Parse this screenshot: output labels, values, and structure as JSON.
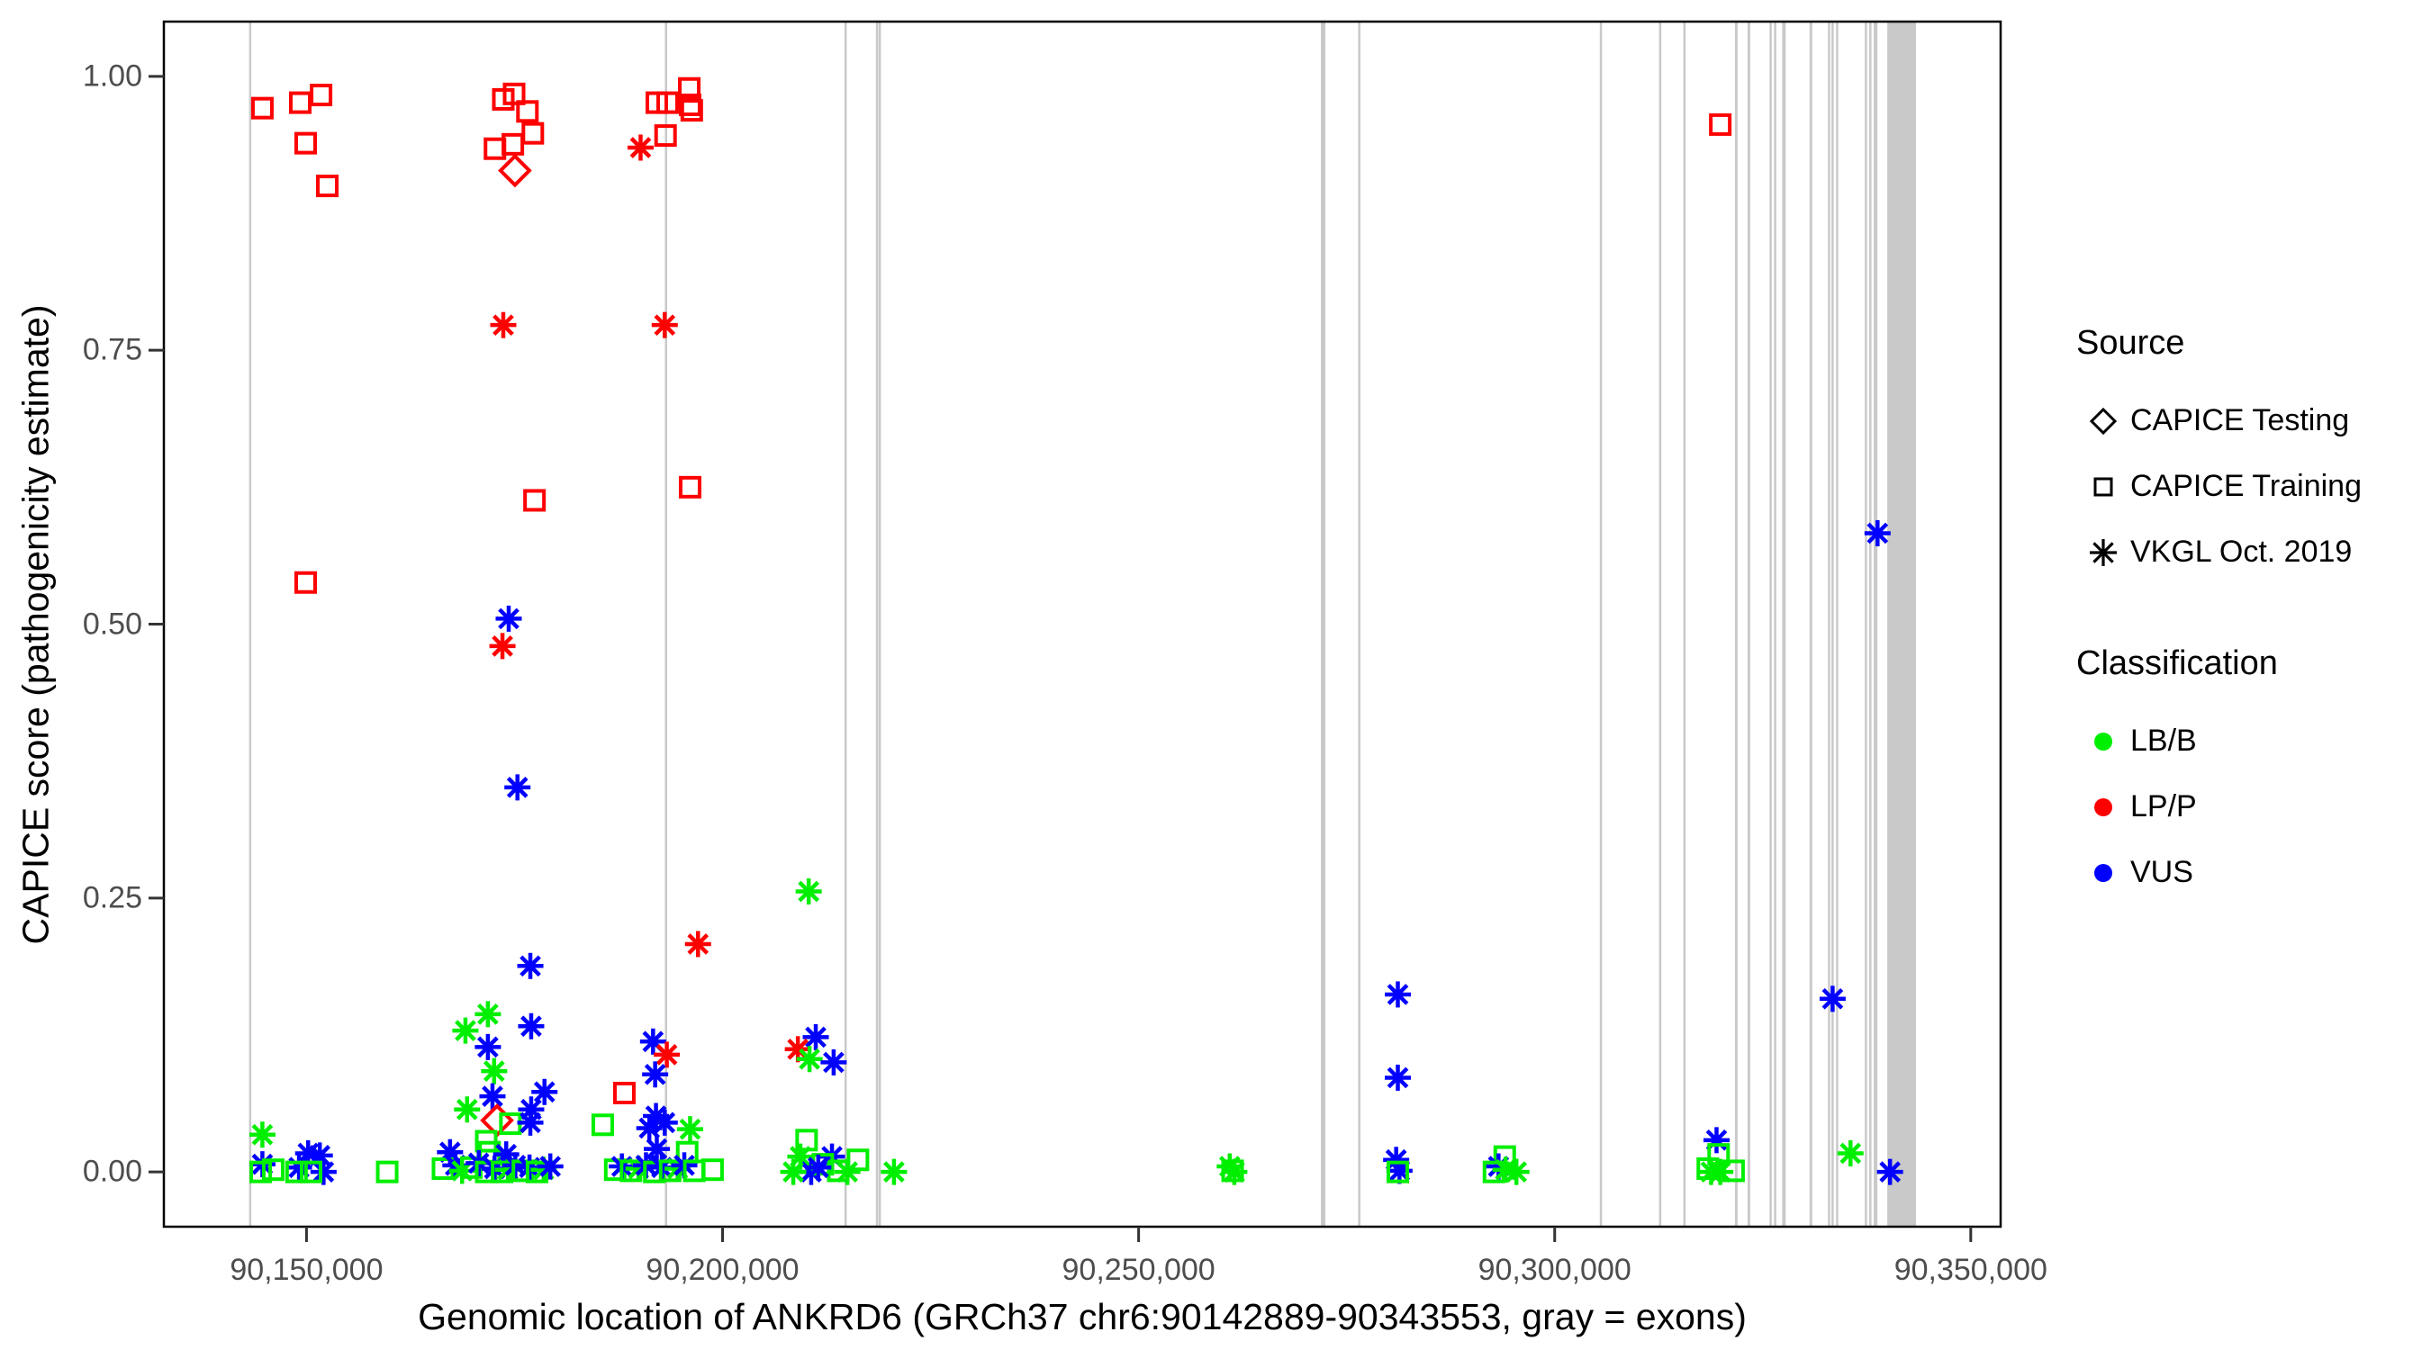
{
  "chart_data": {
    "type": "scatter",
    "xlabel": "Genomic location of ANKRD6 (GRCh37 chr6:90142889-90343553, gray = exons)",
    "ylabel": "CAPICE score (pathogenicity estimate)",
    "x_range": [
      90132860,
      90353590
    ],
    "y_range": [
      -0.05,
      1.05
    ],
    "grid": "off",
    "legend_position": "right",
    "x_ticks": [
      {
        "v": 90150000,
        "label": "90,150,000"
      },
      {
        "v": 90200000,
        "label": "90,200,000"
      },
      {
        "v": 90250000,
        "label": "90,250,000"
      },
      {
        "v": 90300000,
        "label": "90,300,000"
      },
      {
        "v": 90350000,
        "label": "90,350,000"
      }
    ],
    "y_ticks": [
      {
        "v": 1.0,
        "label": "1.00"
      },
      {
        "v": 0.75,
        "label": "0.75"
      },
      {
        "v": 0.5,
        "label": "0.50"
      },
      {
        "v": 0.25,
        "label": "0.25"
      },
      {
        "v": 0.0,
        "label": "0.00"
      }
    ],
    "colors": {
      "LB/B": "#00EE00",
      "LP/P": "#FF0000",
      "VUS": "#0000FF",
      "exon": "#C9C9C9",
      "panel_border": "#000000",
      "tick": "#333333",
      "tick_text": "#4D4D4D"
    },
    "exons": [
      [
        90143100,
        90143320
      ],
      [
        90193070,
        90193280
      ],
      [
        90214650,
        90214870
      ],
      [
        90218430,
        90218640
      ],
      [
        90218760,
        90218970
      ],
      [
        90271900,
        90272440
      ],
      [
        90276380,
        90276600
      ],
      [
        90305420,
        90305630
      ],
      [
        90312540,
        90312760
      ],
      [
        90315460,
        90315670
      ],
      [
        90321660,
        90321980
      ],
      [
        90323175,
        90323500
      ],
      [
        90325820,
        90326040
      ],
      [
        90326360,
        90326580
      ],
      [
        90327330,
        90327760
      ],
      [
        90330630,
        90330950
      ],
      [
        90332840,
        90333050
      ],
      [
        90333270,
        90333490
      ],
      [
        90333810,
        90334030
      ],
      [
        90337270,
        90337480
      ],
      [
        90337800,
        90338020
      ],
      [
        90338340,
        90338780
      ],
      [
        90339970,
        90343420
      ]
    ],
    "points": [
      [
        90144700,
        0.971,
        "training",
        "LP/P"
      ],
      [
        90149250,
        0.976,
        "training",
        "LP/P"
      ],
      [
        90151750,
        0.983,
        "training",
        "LP/P"
      ],
      [
        90149900,
        0.939,
        "training",
        "LP/P"
      ],
      [
        90152500,
        0.9,
        "training",
        "LP/P"
      ],
      [
        90149900,
        0.538,
        "training",
        "LP/P"
      ],
      [
        90144700,
        0.034,
        "vkgl",
        "LB/B"
      ],
      [
        90144700,
        0.007,
        "vkgl",
        "VUS"
      ],
      [
        90144500,
        0.0,
        "training",
        "LB/B"
      ],
      [
        90150200,
        0.017,
        "vkgl",
        "VUS"
      ],
      [
        90151600,
        0.015,
        "vkgl",
        "VUS"
      ],
      [
        90149100,
        0.004,
        "vkgl",
        "VUS"
      ],
      [
        90152050,
        0.0,
        "vkgl",
        "VUS"
      ],
      [
        90148800,
        0.0,
        "training",
        "LB/B"
      ],
      [
        90150550,
        0.0,
        "training",
        "LB/B"
      ],
      [
        90146000,
        0.002,
        "training",
        "LB/B"
      ],
      [
        90159700,
        0.0,
        "training",
        "LB/B"
      ],
      [
        90173650,
        0.979,
        "training",
        "LP/P"
      ],
      [
        90174950,
        0.984,
        "training",
        "LP/P"
      ],
      [
        90176550,
        0.968,
        "training",
        "LP/P"
      ],
      [
        90172650,
        0.934,
        "training",
        "LP/P"
      ],
      [
        90174800,
        0.938,
        "training",
        "LP/P"
      ],
      [
        90177200,
        0.948,
        "training",
        "LP/P"
      ],
      [
        90175050,
        0.914,
        "testing",
        "LP/P"
      ],
      [
        90173650,
        0.773,
        "vkgl",
        "LP/P"
      ],
      [
        90177400,
        0.613,
        "training",
        "LP/P"
      ],
      [
        90174300,
        0.505,
        "vkgl",
        "VUS"
      ],
      [
        90173550,
        0.48,
        "vkgl",
        "LP/P"
      ],
      [
        90175350,
        0.351,
        "vkgl",
        "VUS"
      ],
      [
        90176900,
        0.188,
        "vkgl",
        "VUS"
      ],
      [
        90171800,
        0.144,
        "vkgl",
        "LB/B"
      ],
      [
        90177000,
        0.133,
        "vkgl",
        "VUS"
      ],
      [
        90169100,
        0.129,
        "vkgl",
        "LB/B"
      ],
      [
        90171800,
        0.114,
        "vkgl",
        "VUS"
      ],
      [
        90172550,
        0.092,
        "vkgl",
        "LB/B"
      ],
      [
        90178600,
        0.073,
        "vkgl",
        "VUS"
      ],
      [
        90172350,
        0.069,
        "vkgl",
        "VUS"
      ],
      [
        90169300,
        0.057,
        "vkgl",
        "LB/B"
      ],
      [
        90177000,
        0.057,
        "vkgl",
        "VUS"
      ],
      [
        90172900,
        0.047,
        "testing",
        "LP/P"
      ],
      [
        90174500,
        0.044,
        "training",
        "LB/B"
      ],
      [
        90176900,
        0.045,
        "vkgl",
        "VUS"
      ],
      [
        90171600,
        0.028,
        "training",
        "LB/B"
      ],
      [
        90172000,
        0.018,
        "training",
        "LB/B"
      ],
      [
        90167250,
        0.018,
        "vkgl",
        "VUS"
      ],
      [
        90174000,
        0.016,
        "vkgl",
        "VUS"
      ],
      [
        90166400,
        0.003,
        "training",
        "LB/B"
      ],
      [
        90167900,
        0.006,
        "vkgl",
        "VUS"
      ],
      [
        90168700,
        0.001,
        "vkgl",
        "LB/B"
      ],
      [
        90169800,
        0.004,
        "training",
        "LB/B"
      ],
      [
        90170700,
        0.008,
        "vkgl",
        "VUS"
      ],
      [
        90171600,
        0.0,
        "training",
        "LB/B"
      ],
      [
        90172600,
        0.003,
        "vkgl",
        "VUS"
      ],
      [
        90173500,
        0.0,
        "training",
        "LB/B"
      ],
      [
        90174200,
        0.002,
        "vkgl",
        "LB/B"
      ],
      [
        90175100,
        0.006,
        "vkgl",
        "VUS"
      ],
      [
        90176000,
        0.001,
        "training",
        "LB/B"
      ],
      [
        90176800,
        0.004,
        "vkgl",
        "VUS"
      ],
      [
        90177700,
        0.0,
        "training",
        "LB/B"
      ],
      [
        90178500,
        0.002,
        "vkgl",
        "LB/B"
      ],
      [
        90179300,
        0.005,
        "vkgl",
        "VUS"
      ],
      [
        90188200,
        0.072,
        "training",
        "LP/P"
      ],
      [
        90185600,
        0.043,
        "training",
        "LB/B"
      ],
      [
        90191650,
        0.119,
        "vkgl",
        "VUS"
      ],
      [
        90193300,
        0.107,
        "vkgl",
        "LP/P"
      ],
      [
        90191900,
        0.089,
        "vkgl",
        "VUS"
      ],
      [
        90192000,
        0.051,
        "vkgl",
        "VUS"
      ],
      [
        90193050,
        0.045,
        "vkgl",
        "VUS"
      ],
      [
        90191200,
        0.04,
        "vkgl",
        "VUS"
      ],
      [
        90196100,
        0.039,
        "vkgl",
        "LB/B"
      ],
      [
        90192100,
        0.021,
        "vkgl",
        "VUS"
      ],
      [
        90195750,
        0.018,
        "training",
        "LB/B"
      ],
      [
        90187100,
        0.002,
        "training",
        "LB/B"
      ],
      [
        90187900,
        0.005,
        "vkgl",
        "VUS"
      ],
      [
        90189000,
        0.001,
        "training",
        "LB/B"
      ],
      [
        90189900,
        0.003,
        "vkgl",
        "LB/B"
      ],
      [
        90190800,
        0.006,
        "vkgl",
        "VUS"
      ],
      [
        90191800,
        0.0,
        "training",
        "LB/B"
      ],
      [
        90192700,
        0.004,
        "vkgl",
        "VUS"
      ],
      [
        90193700,
        0.001,
        "training",
        "LB/B"
      ],
      [
        90194600,
        0.003,
        "vkgl",
        "LB/B"
      ],
      [
        90195400,
        0.006,
        "vkgl",
        "VUS"
      ],
      [
        90196600,
        0.001,
        "training",
        "LB/B"
      ],
      [
        90198800,
        0.002,
        "training",
        "LB/B"
      ],
      [
        90190150,
        0.935,
        "vkgl",
        "LP/P"
      ],
      [
        90192100,
        0.976,
        "training",
        "LP/P"
      ],
      [
        90193400,
        0.976,
        "training",
        "LP/P"
      ],
      [
        90196000,
        0.989,
        "training",
        "LP/P"
      ],
      [
        90196100,
        0.974,
        "training",
        "LP/P"
      ],
      [
        90196300,
        0.969,
        "training",
        "LP/P"
      ],
      [
        90193150,
        0.946,
        "training",
        "LP/P"
      ],
      [
        90193050,
        0.773,
        "vkgl",
        "LP/P"
      ],
      [
        90197050,
        0.208,
        "vkgl",
        "LP/P"
      ],
      [
        90196100,
        0.625,
        "training",
        "LP/P"
      ],
      [
        90210350,
        0.256,
        "vkgl",
        "LB/B"
      ],
      [
        90211200,
        0.123,
        "vkgl",
        "VUS"
      ],
      [
        90209050,
        0.112,
        "vkgl",
        "LP/P"
      ],
      [
        90210450,
        0.103,
        "vkgl",
        "LB/B"
      ],
      [
        90213350,
        0.1,
        "vkgl",
        "VUS"
      ],
      [
        90210100,
        0.029,
        "training",
        "LB/B"
      ],
      [
        90209350,
        0.014,
        "vkgl",
        "LB/B"
      ],
      [
        90213150,
        0.014,
        "vkgl",
        "VUS"
      ],
      [
        90210650,
        0.0,
        "vkgl",
        "VUS"
      ],
      [
        90212050,
        0.007,
        "training",
        "LB/B"
      ],
      [
        90213900,
        0.001,
        "training",
        "LB/B"
      ],
      [
        90216270,
        0.011,
        "training",
        "LB/B"
      ],
      [
        90208500,
        0.0,
        "vkgl",
        "LB/B"
      ],
      [
        90215000,
        0.0,
        "vkgl",
        "LB/B"
      ],
      [
        90211500,
        0.004,
        "vkgl",
        "VUS"
      ],
      [
        90220600,
        0.0,
        "vkgl",
        "LB/B"
      ],
      [
        90260950,
        0.005,
        "vkgl",
        "LB/B"
      ],
      [
        90261300,
        0.001,
        "training",
        "LB/B"
      ],
      [
        90261500,
        0.0,
        "vkgl",
        "LB/B"
      ],
      [
        90281150,
        0.162,
        "vkgl",
        "VUS"
      ],
      [
        90281150,
        0.086,
        "vkgl",
        "VUS"
      ],
      [
        90280950,
        0.011,
        "vkgl",
        "VUS"
      ],
      [
        90281350,
        0.001,
        "vkgl",
        "VUS"
      ],
      [
        90281150,
        0.0,
        "training",
        "LB/B"
      ],
      [
        90294000,
        0.014,
        "training",
        "LB/B"
      ],
      [
        90293250,
        0.005,
        "vkgl",
        "VUS"
      ],
      [
        90294100,
        0.002,
        "vkgl",
        "LB/B"
      ],
      [
        90292700,
        0.0,
        "training",
        "LB/B"
      ],
      [
        90295400,
        0.0,
        "vkgl",
        "LB/B"
      ],
      [
        90319900,
        0.956,
        "training",
        "LP/P"
      ],
      [
        90319450,
        0.029,
        "vkgl",
        "VUS"
      ],
      [
        90319700,
        0.016,
        "training",
        "LB/B"
      ],
      [
        90321500,
        0.001,
        "training",
        "LB/B"
      ],
      [
        90318800,
        0.0,
        "vkgl",
        "LB/B"
      ],
      [
        90319900,
        0.0,
        "vkgl",
        "LB/B"
      ],
      [
        90318400,
        0.003,
        "training",
        "LB/B"
      ],
      [
        90333400,
        0.158,
        "vkgl",
        "VUS"
      ],
      [
        90335550,
        0.017,
        "vkgl",
        "LB/B"
      ],
      [
        90338800,
        0.583,
        "vkgl",
        "VUS"
      ],
      [
        90340300,
        0.0,
        "vkgl",
        "VUS"
      ]
    ]
  },
  "legend": {
    "source": {
      "title": "Source",
      "items": [
        {
          "symbol": "diamond",
          "label": "CAPICE Testing"
        },
        {
          "symbol": "square",
          "label": "CAPICE Training"
        },
        {
          "symbol": "asterisk",
          "label": "VKGL Oct. 2019"
        }
      ]
    },
    "classification": {
      "title": "Classification",
      "items": [
        {
          "color": "LB/B",
          "label": "LB/B"
        },
        {
          "color": "LP/P",
          "label": "LP/P"
        },
        {
          "color": "VUS",
          "label": "VUS"
        }
      ]
    }
  }
}
